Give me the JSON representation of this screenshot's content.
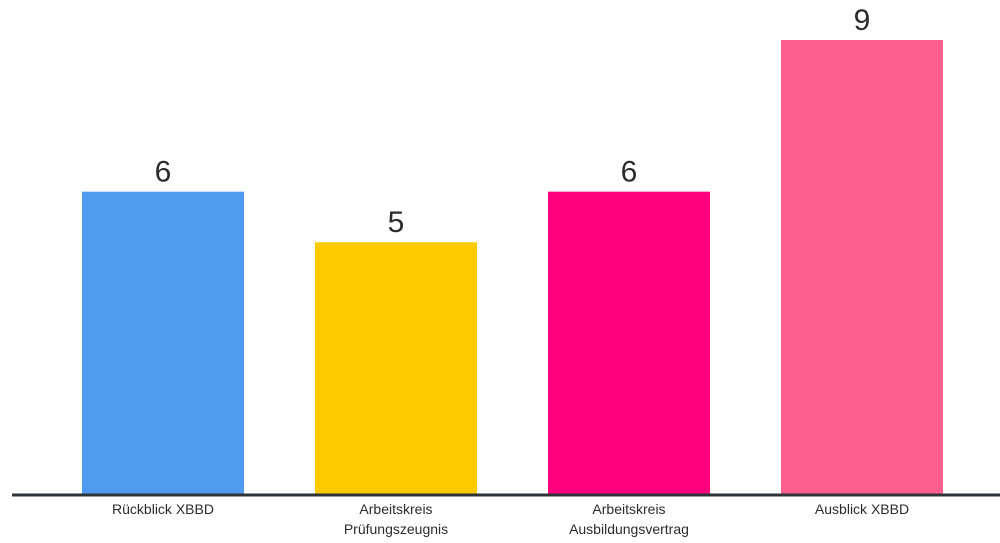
{
  "chart_data": {
    "type": "bar",
    "title": "",
    "xlabel": "",
    "ylabel": "",
    "categories": [
      [
        "Rückblick XBBD"
      ],
      [
        "Arbeitskreis",
        "Prüfungszeugnis"
      ],
      [
        "Arbeitskreis",
        "Ausbildungsvertrag"
      ],
      [
        "Ausblick XBBD"
      ]
    ],
    "values": [
      6,
      5,
      6,
      9
    ],
    "colors": [
      "#4f9bf0",
      "#fdca00",
      "#ff007f",
      "#ff5f8f"
    ],
    "ylim": [
      0,
      9
    ],
    "data_labels": true,
    "grid": false,
    "legend": "none",
    "axis_color": "#2e3338"
  }
}
